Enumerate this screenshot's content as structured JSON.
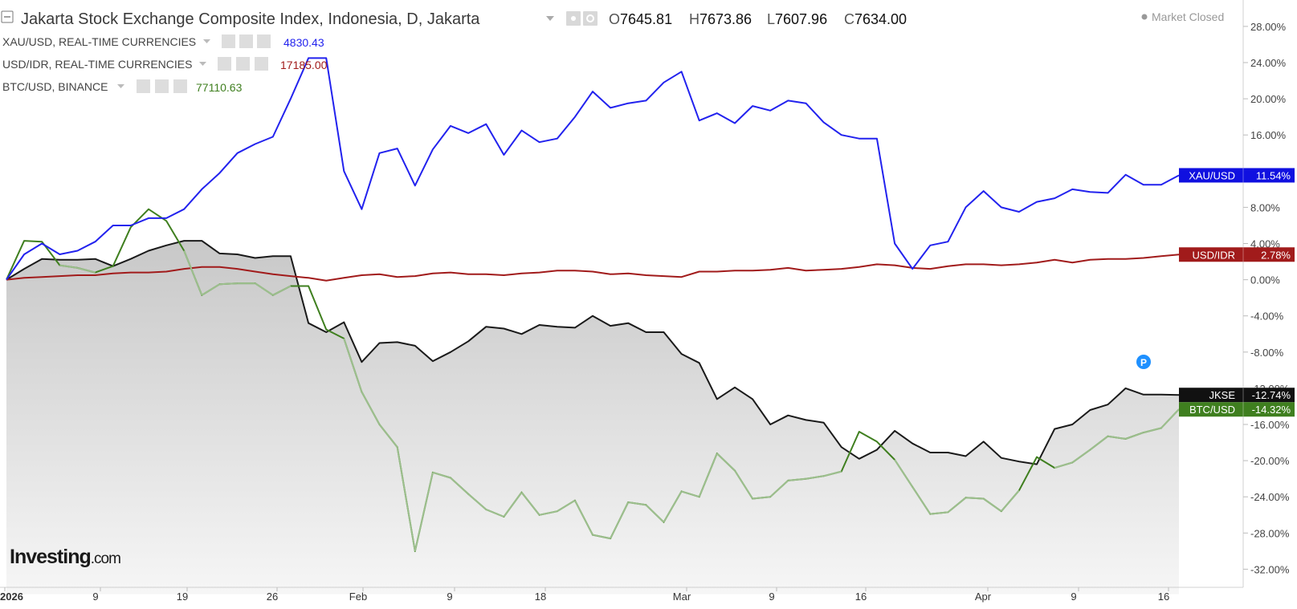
{
  "header": {
    "title": "Jakarta Stock Exchange Composite Index, Indonesia, D, Jakarta",
    "ohlc": [
      {
        "k": "O",
        "v": "7645.81"
      },
      {
        "k": "H",
        "v": "7673.86"
      },
      {
        "k": "L",
        "v": "7607.96"
      },
      {
        "k": "C",
        "v": "7634.00"
      }
    ],
    "market_status": "Market Closed"
  },
  "overlays": [
    {
      "label": "XAU/USD, REAL-TIME CURRENCIES",
      "value": "4830.43",
      "color": "#2222ee"
    },
    {
      "label": "USD/IDR, REAL-TIME CURRENCIES",
      "value": "17185.00",
      "color": "#a11b1b"
    },
    {
      "label": "BTC/USD, BINANCE",
      "value": "77110.63",
      "color": "#3f7f1f"
    }
  ],
  "logo": {
    "main": "Investing",
    "suffix": ".com"
  },
  "chart_data": {
    "type": "line",
    "x_ticks": [
      "2026",
      "9",
      "19",
      "26",
      "Feb",
      "9",
      "18",
      "Mar",
      "9",
      "16",
      "Apr",
      "9",
      "16"
    ],
    "y_ticks": [
      "28.00%",
      "24.00%",
      "20.00%",
      "16.00%",
      "12.00%",
      "8.00%",
      "4.00%",
      "0.00%",
      "-4.00%",
      "-8.00%",
      "-12.00%",
      "-16.00%",
      "-20.00%",
      "-24.00%",
      "-28.00%",
      "-32.00%"
    ],
    "ylim": [
      -33,
      30
    ],
    "series": [
      {
        "name": "XAU/USD",
        "color": "#2222ee",
        "last_label": "11.54%",
        "area": false,
        "values": [
          0.0,
          2.8,
          4.0,
          2.8,
          3.2,
          4.2,
          6.0,
          6.0,
          6.8,
          6.8,
          7.8,
          10.0,
          11.8,
          14.0,
          15.0,
          15.8,
          20.0,
          24.5,
          24.5,
          12.0,
          7.8,
          14.0,
          14.5,
          10.4,
          14.4,
          17.0,
          16.2,
          17.2,
          13.8,
          16.5,
          15.2,
          15.6,
          18.0,
          20.8,
          19.0,
          19.5,
          19.8,
          21.8,
          23.0,
          17.6,
          18.4,
          17.3,
          19.2,
          18.7,
          19.8,
          19.5,
          17.4,
          16.0,
          15.6,
          15.6,
          4.0,
          1.2,
          3.8,
          4.2,
          8.0,
          9.8,
          8.0,
          7.5,
          8.6,
          9.0,
          10.0,
          9.7,
          9.6,
          11.6,
          10.5,
          10.5,
          11.54
        ]
      },
      {
        "name": "USD/IDR",
        "color": "#a11b1b",
        "last_label": "2.78%",
        "area": false,
        "values": [
          0.0,
          0.2,
          0.3,
          0.4,
          0.5,
          0.5,
          0.7,
          0.8,
          0.8,
          0.9,
          1.2,
          1.4,
          1.4,
          1.2,
          0.9,
          0.6,
          0.4,
          0.2,
          -0.1,
          0.2,
          0.5,
          0.6,
          0.3,
          0.4,
          0.7,
          0.8,
          0.6,
          0.6,
          0.5,
          0.7,
          0.8,
          1.0,
          1.0,
          0.9,
          0.6,
          0.7,
          0.5,
          0.4,
          0.3,
          0.9,
          0.9,
          1.0,
          1.0,
          1.1,
          1.3,
          1.0,
          1.1,
          1.2,
          1.4,
          1.7,
          1.6,
          1.3,
          1.2,
          1.5,
          1.7,
          1.7,
          1.6,
          1.7,
          1.9,
          2.2,
          1.9,
          2.2,
          2.3,
          2.3,
          2.4,
          2.6,
          2.78
        ]
      },
      {
        "name": "BTC/USD",
        "color": "#3f7f1f",
        "last_label": "-14.32%",
        "area": false,
        "values": [
          0.0,
          4.3,
          4.2,
          1.6,
          1.3,
          0.8,
          1.5,
          5.8,
          7.8,
          6.5,
          3.2,
          -1.7,
          -0.5,
          -0.4,
          -0.4,
          -1.7,
          -0.7,
          -0.7,
          -5.5,
          -6.5,
          -12.4,
          -16.0,
          -18.5,
          -30.0,
          -21.3,
          -21.9,
          -23.7,
          -25.4,
          -26.2,
          -23.5,
          -26.0,
          -25.6,
          -24.4,
          -28.2,
          -28.6,
          -24.6,
          -24.9,
          -26.8,
          -23.4,
          -24.0,
          -19.2,
          -21.1,
          -24.2,
          -24.0,
          -22.2,
          -22.0,
          -21.7,
          -21.2,
          -16.8,
          -17.9,
          -19.9,
          -22.9,
          -25.9,
          -25.7,
          -24.1,
          -24.2,
          -25.6,
          -23.3,
          -19.6,
          -20.8,
          -20.2,
          -18.8,
          -17.3,
          -17.6,
          -16.9,
          -16.4,
          -14.32
        ]
      },
      {
        "name": "JKSE",
        "color": "#1a1a1a",
        "last_label": "-12.74%",
        "area": true,
        "values": [
          0.0,
          1.2,
          2.3,
          2.2,
          2.2,
          2.3,
          1.5,
          2.3,
          3.2,
          3.8,
          4.3,
          4.3,
          2.9,
          2.8,
          2.4,
          2.6,
          2.6,
          -4.8,
          -5.8,
          -4.7,
          -9.1,
          -7.0,
          -6.9,
          -7.3,
          -9.0,
          -8.0,
          -6.8,
          -5.2,
          -5.4,
          -6.0,
          -5.0,
          -5.2,
          -5.3,
          -4.0,
          -5.1,
          -4.8,
          -5.8,
          -5.8,
          -8.2,
          -9.2,
          -13.2,
          -11.9,
          -13.2,
          -16.0,
          -15.0,
          -15.5,
          -15.8,
          -18.5,
          -19.8,
          -18.8,
          -16.7,
          -18.1,
          -19.1,
          -19.1,
          -19.5,
          -17.9,
          -19.7,
          -20.1,
          -20.4,
          -16.5,
          -16.0,
          -14.4,
          -13.8,
          -12.0,
          -12.7,
          -12.7,
          -12.74
        ]
      }
    ]
  }
}
